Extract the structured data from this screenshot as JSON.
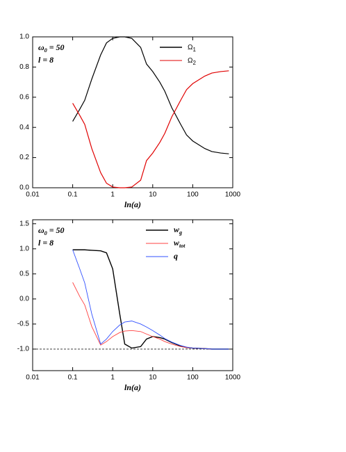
{
  "chart_data": [
    {
      "type": "line",
      "xlabel": "ln(a)",
      "log_x": true,
      "annotations": [
        "ω0 = 50",
        "l = 8"
      ],
      "legend": "upper right",
      "xlim": [
        0.01,
        1000
      ],
      "xticks": [
        0.01,
        0.1,
        1,
        10,
        100,
        1000
      ],
      "ylim": [
        0,
        1
      ],
      "yticks": [
        {
          "value": 0,
          "label": "0.0"
        },
        0.2,
        0.4,
        0.6,
        0.8,
        {
          "value": 1,
          "label": "1.0"
        }
      ],
      "x": [
        0.1,
        0.15,
        0.2,
        0.3,
        0.5,
        0.7,
        1,
        1.5,
        2,
        3,
        5,
        7,
        10,
        15,
        20,
        30,
        50,
        70,
        100,
        200,
        300,
        500,
        800
      ],
      "series": [
        {
          "name": "Ω1",
          "color": "#000000",
          "values": [
            0.44,
            0.52,
            0.58,
            0.72,
            0.88,
            0.96,
            0.99,
            1.0,
            1.0,
            0.99,
            0.93,
            0.82,
            0.77,
            0.7,
            0.64,
            0.53,
            0.42,
            0.35,
            0.31,
            0.26,
            0.24,
            0.23,
            0.225
          ]
        },
        {
          "name": "Ω2",
          "color": "#e00000",
          "values": [
            0.56,
            0.48,
            0.42,
            0.26,
            0.1,
            0.03,
            0.005,
            0,
            0,
            0.005,
            0.05,
            0.18,
            0.23,
            0.3,
            0.36,
            0.47,
            0.58,
            0.65,
            0.69,
            0.74,
            0.76,
            0.77,
            0.775
          ]
        }
      ]
    },
    {
      "type": "line",
      "xlabel": "ln(a)",
      "log_x": true,
      "annotations": [
        "ω0 = 50",
        "l = 8"
      ],
      "legend": "upper right",
      "hline": -1,
      "xlim": [
        0.01,
        1000
      ],
      "xticks": [
        0.01,
        0.1,
        1,
        10,
        100,
        1000
      ],
      "ylim": [
        -1.43,
        1.58
      ],
      "yticks": [
        {
          "value": -1,
          "label": "-1.0"
        },
        -0.5,
        {
          "value": 0,
          "label": "0.0"
        },
        0.5,
        {
          "value": 1,
          "label": "1.0"
        },
        1.5
      ],
      "x": [
        0.1,
        0.15,
        0.2,
        0.3,
        0.5,
        0.7,
        1,
        1.5,
        2,
        3,
        5,
        7,
        10,
        15,
        20,
        30,
        50,
        70,
        100,
        200,
        300,
        500,
        800
      ],
      "series": [
        {
          "name": "wg",
          "color": "#000000",
          "values": [
            0.98,
            0.98,
            0.98,
            0.97,
            0.96,
            0.92,
            0.6,
            -0.3,
            -0.9,
            -0.98,
            -0.95,
            -0.8,
            -0.75,
            -0.77,
            -0.8,
            -0.87,
            -0.94,
            -0.97,
            -0.98,
            -0.99,
            -1,
            -1,
            -1
          ]
        },
        {
          "name": "wtot",
          "color": "#ff4040",
          "values": [
            0.33,
            0.05,
            -0.12,
            -0.55,
            -0.92,
            -0.85,
            -0.75,
            -0.67,
            -0.64,
            -0.63,
            -0.65,
            -0.7,
            -0.75,
            -0.8,
            -0.85,
            -0.9,
            -0.95,
            -0.97,
            -0.98,
            -0.99,
            -1,
            -1,
            -1
          ]
        },
        {
          "name": "q",
          "color": "#3050ff",
          "values": [
            0.98,
            0.6,
            0.32,
            -0.3,
            -0.9,
            -0.8,
            -0.65,
            -0.52,
            -0.46,
            -0.44,
            -0.5,
            -0.56,
            -0.63,
            -0.72,
            -0.79,
            -0.86,
            -0.93,
            -0.96,
            -0.98,
            -0.99,
            -1,
            -1,
            -1
          ]
        }
      ]
    }
  ]
}
